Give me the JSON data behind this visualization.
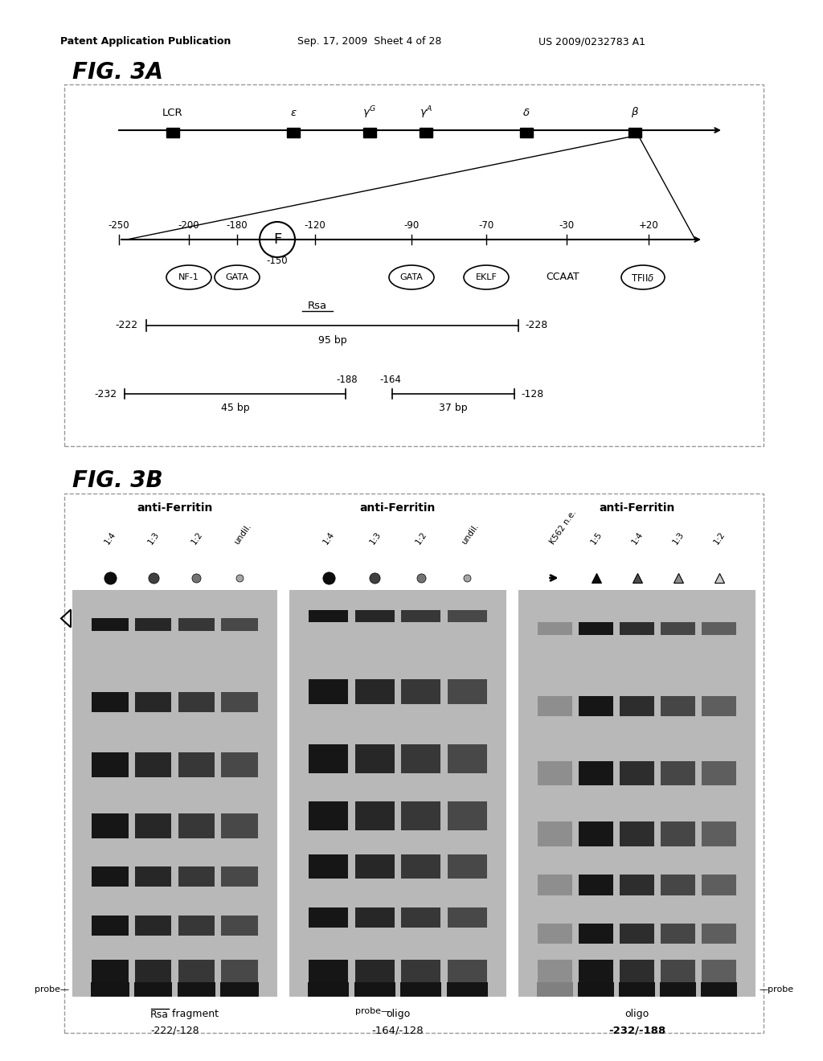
{
  "fig_width": 10.24,
  "fig_height": 13.2,
  "dpi": 100,
  "bg_color": "#ffffff",
  "header_left": "Patent Application Publication",
  "header_mid": "Sep. 17, 2009  Sheet 4 of 28",
  "header_right": "US 2009/0232783 A1",
  "fig3a_label": "FIG. 3A",
  "fig3b_label": "FIG. 3B"
}
